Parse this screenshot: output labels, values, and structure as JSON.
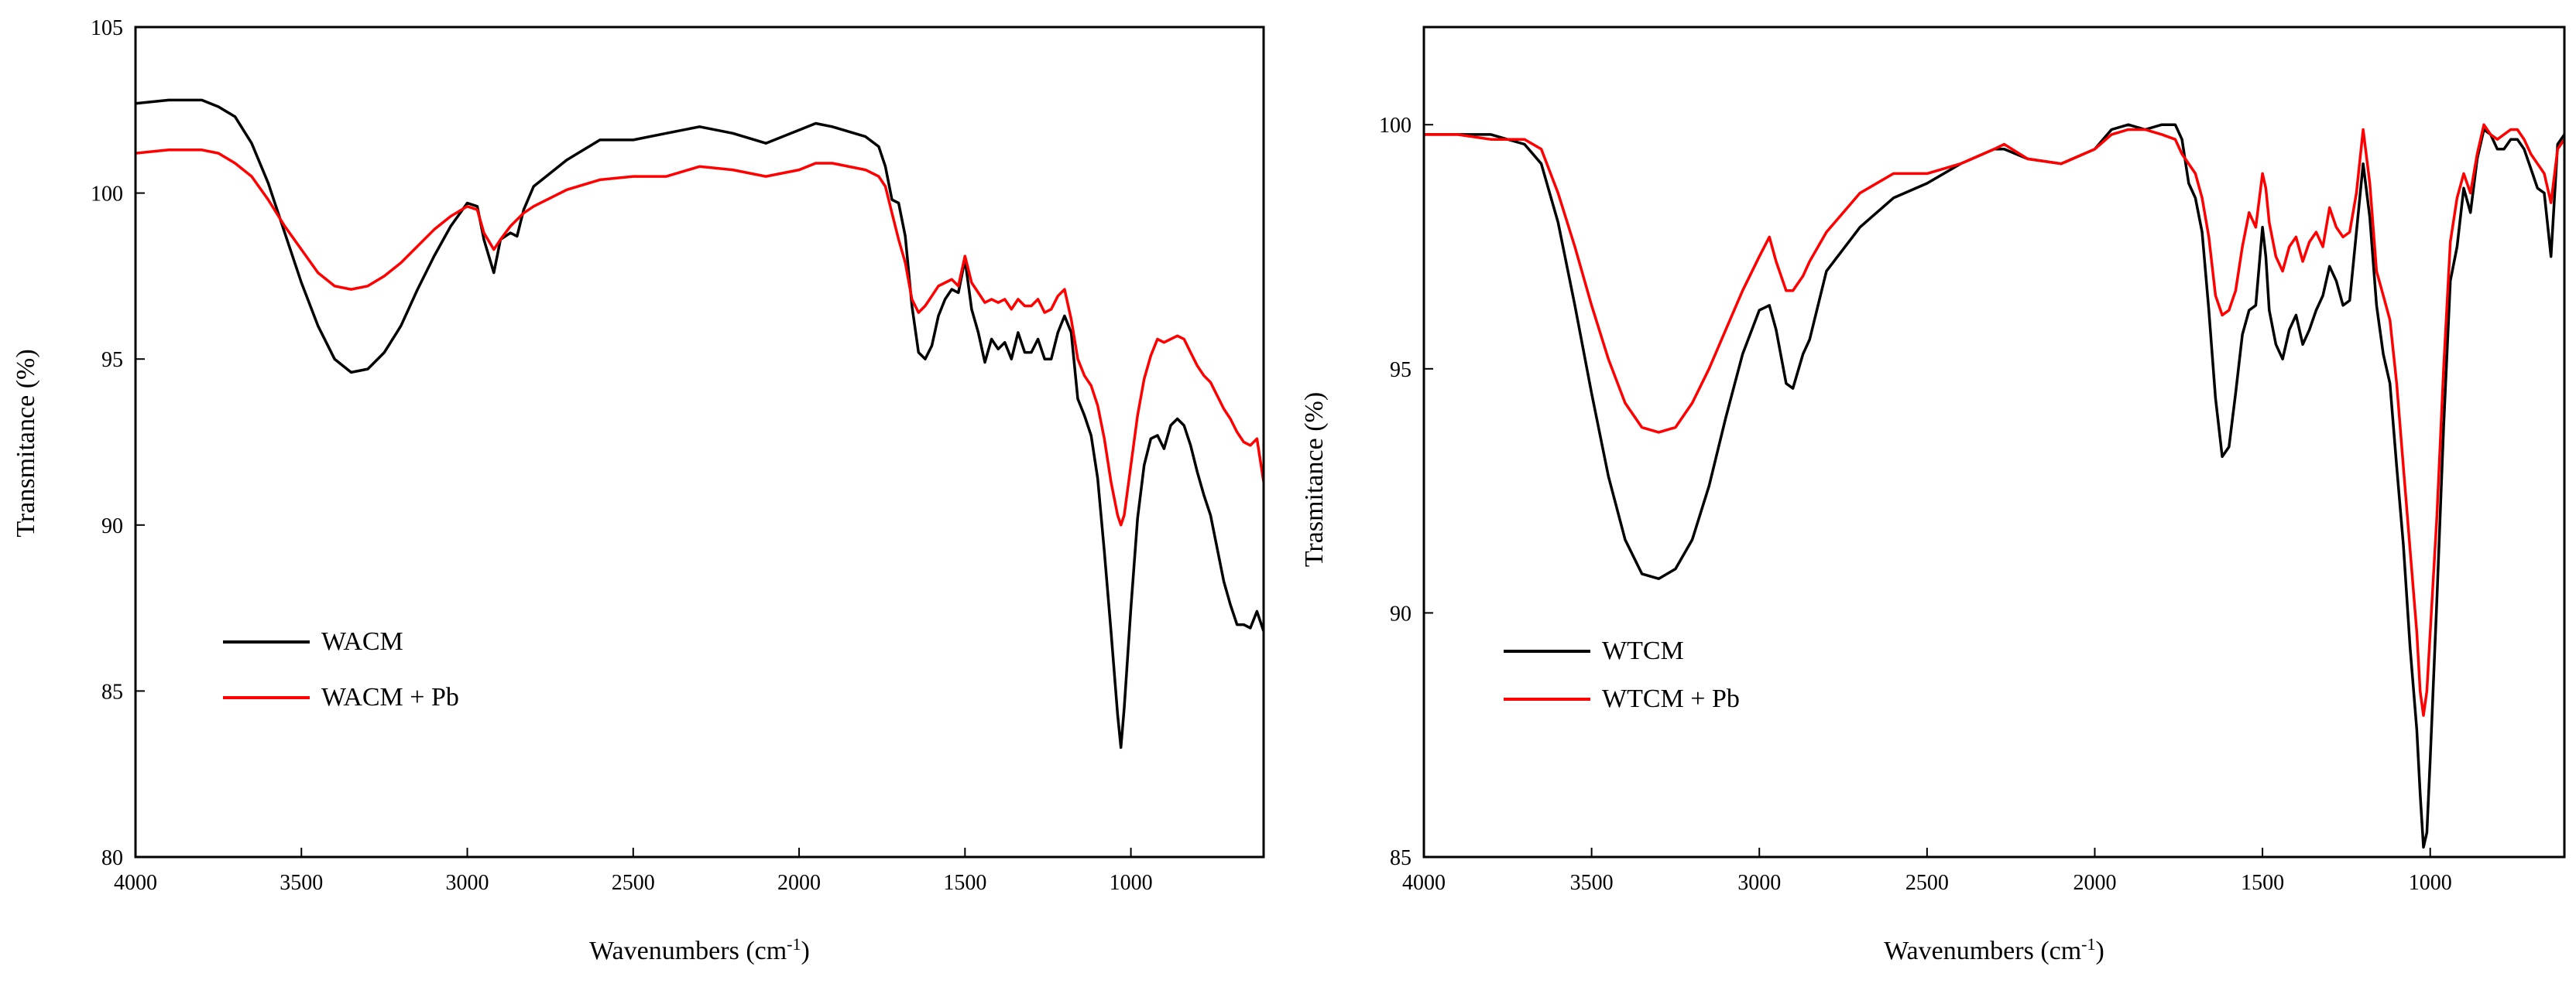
{
  "chart_data": [
    {
      "type": "line",
      "xlabel": "Wavenumbers (cm",
      "xlabel_sup": "-1",
      "xlabel_close": ")",
      "ylabel": "Transmitance (%)",
      "xlim": [
        4000,
        600
      ],
      "ylim": [
        80,
        105
      ],
      "xticks": [
        "4000",
        "3500",
        "3000",
        "2500",
        "2000",
        "1500",
        "1000"
      ],
      "xtick_values": [
        4000,
        3500,
        3000,
        2500,
        2000,
        1500,
        1000
      ],
      "yticks": [
        "80",
        "85",
        "90",
        "95",
        "100",
        "105"
      ],
      "ytick_values": [
        80,
        85,
        90,
        95,
        100,
        105
      ],
      "legend_position": "bottom-left",
      "series": [
        {
          "name": "WACM",
          "color": "#000000",
          "x": [
            4000,
            3900,
            3800,
            3750,
            3700,
            3650,
            3600,
            3550,
            3500,
            3450,
            3400,
            3350,
            3300,
            3250,
            3200,
            3150,
            3100,
            3050,
            3000,
            2970,
            2950,
            2920,
            2900,
            2870,
            2850,
            2830,
            2800,
            2700,
            2600,
            2500,
            2400,
            2300,
            2200,
            2100,
            2000,
            1950,
            1900,
            1800,
            1760,
            1740,
            1720,
            1700,
            1680,
            1660,
            1640,
            1620,
            1600,
            1580,
            1560,
            1540,
            1520,
            1500,
            1480,
            1460,
            1440,
            1420,
            1400,
            1380,
            1360,
            1340,
            1320,
            1300,
            1280,
            1260,
            1240,
            1220,
            1200,
            1180,
            1160,
            1140,
            1120,
            1100,
            1080,
            1060,
            1040,
            1030,
            1020,
            1000,
            980,
            960,
            940,
            920,
            900,
            880,
            860,
            840,
            820,
            800,
            780,
            760,
            740,
            720,
            700,
            680,
            660,
            640,
            620,
            600
          ],
          "values": [
            102.7,
            102.8,
            102.8,
            102.6,
            102.3,
            101.5,
            100.3,
            98.8,
            97.3,
            96.0,
            95.0,
            94.6,
            94.7,
            95.2,
            96.0,
            97.1,
            98.1,
            99.0,
            99.7,
            99.6,
            98.6,
            97.6,
            98.6,
            98.8,
            98.7,
            99.5,
            100.2,
            101.0,
            101.6,
            101.6,
            101.8,
            102.0,
            101.8,
            101.5,
            101.9,
            102.1,
            102.0,
            101.7,
            101.4,
            100.8,
            99.8,
            99.7,
            98.7,
            96.6,
            95.2,
            95.0,
            95.4,
            96.3,
            96.8,
            97.1,
            97.0,
            98.0,
            96.5,
            95.8,
            94.9,
            95.6,
            95.3,
            95.5,
            95.0,
            95.8,
            95.2,
            95.2,
            95.6,
            95.0,
            95.0,
            95.8,
            96.3,
            95.8,
            93.8,
            93.3,
            92.7,
            91.4,
            89.2,
            86.8,
            84.3,
            83.3,
            84.5,
            87.5,
            90.2,
            91.8,
            92.6,
            92.7,
            92.3,
            93.0,
            93.2,
            93.0,
            92.4,
            91.6,
            90.9,
            90.3,
            89.3,
            88.3,
            87.6,
            87.0,
            87.0,
            86.9,
            87.4,
            86.8
          ]
        },
        {
          "name": "WACM + Pb",
          "color": "#ff0000",
          "x": [
            4000,
            3900,
            3800,
            3750,
            3700,
            3650,
            3600,
            3550,
            3500,
            3450,
            3400,
            3350,
            3300,
            3250,
            3200,
            3150,
            3100,
            3050,
            3000,
            2970,
            2950,
            2920,
            2900,
            2870,
            2850,
            2830,
            2800,
            2700,
            2600,
            2500,
            2400,
            2300,
            2200,
            2100,
            2000,
            1950,
            1900,
            1800,
            1760,
            1740,
            1720,
            1700,
            1680,
            1660,
            1640,
            1620,
            1600,
            1580,
            1560,
            1540,
            1520,
            1500,
            1480,
            1460,
            1440,
            1420,
            1400,
            1380,
            1360,
            1340,
            1320,
            1300,
            1280,
            1260,
            1240,
            1220,
            1200,
            1180,
            1160,
            1140,
            1120,
            1100,
            1080,
            1060,
            1040,
            1030,
            1020,
            1000,
            980,
            960,
            940,
            920,
            900,
            880,
            860,
            840,
            820,
            800,
            780,
            760,
            740,
            720,
            700,
            680,
            660,
            640,
            620,
            600
          ],
          "values": [
            101.2,
            101.3,
            101.3,
            101.2,
            100.9,
            100.5,
            99.8,
            99.0,
            98.3,
            97.6,
            97.2,
            97.1,
            97.2,
            97.5,
            97.9,
            98.4,
            98.9,
            99.3,
            99.6,
            99.5,
            98.8,
            98.3,
            98.6,
            99.0,
            99.2,
            99.4,
            99.6,
            100.1,
            100.4,
            100.5,
            100.5,
            100.8,
            100.7,
            100.5,
            100.7,
            100.9,
            100.9,
            100.7,
            100.5,
            100.2,
            99.4,
            98.6,
            97.9,
            96.8,
            96.4,
            96.6,
            96.9,
            97.2,
            97.3,
            97.4,
            97.2,
            98.1,
            97.3,
            97.0,
            96.7,
            96.8,
            96.7,
            96.8,
            96.5,
            96.8,
            96.6,
            96.6,
            96.8,
            96.4,
            96.5,
            96.9,
            97.1,
            96.2,
            95.0,
            94.5,
            94.2,
            93.6,
            92.6,
            91.3,
            90.3,
            90.0,
            90.3,
            91.8,
            93.3,
            94.4,
            95.1,
            95.6,
            95.5,
            95.6,
            95.7,
            95.6,
            95.2,
            94.8,
            94.5,
            94.3,
            93.9,
            93.5,
            93.2,
            92.8,
            92.5,
            92.4,
            92.6,
            91.3
          ]
        }
      ]
    },
    {
      "type": "line",
      "xlabel": "Wavenumbers (cm",
      "xlabel_sup": "-1",
      "xlabel_close": ")",
      "ylabel": "Trasmitance (%)",
      "xlim": [
        4000,
        600
      ],
      "ylim": [
        85,
        102
      ],
      "xticks": [
        "4000",
        "3500",
        "3000",
        "2500",
        "2000",
        "1500",
        "1000"
      ],
      "xtick_values": [
        4000,
        3500,
        3000,
        2500,
        2000,
        1500,
        1000
      ],
      "yticks": [
        "85",
        "90",
        "95",
        "100"
      ],
      "ytick_values": [
        85,
        90,
        95,
        100
      ],
      "legend_position": "bottom-left",
      "series": [
        {
          "name": "WTCM",
          "color": "#000000",
          "x": [
            4000,
            3900,
            3800,
            3700,
            3650,
            3600,
            3550,
            3500,
            3450,
            3400,
            3350,
            3300,
            3250,
            3200,
            3150,
            3100,
            3050,
            3000,
            2970,
            2950,
            2920,
            2900,
            2870,
            2850,
            2800,
            2700,
            2600,
            2500,
            2400,
            2300,
            2270,
            2200,
            2100,
            2000,
            1950,
            1900,
            1850,
            1800,
            1760,
            1740,
            1720,
            1700,
            1680,
            1660,
            1640,
            1620,
            1600,
            1580,
            1560,
            1540,
            1520,
            1500,
            1490,
            1480,
            1460,
            1440,
            1420,
            1400,
            1380,
            1360,
            1340,
            1320,
            1300,
            1280,
            1260,
            1240,
            1220,
            1200,
            1180,
            1160,
            1140,
            1120,
            1100,
            1080,
            1060,
            1040,
            1030,
            1020,
            1010,
            1000,
            980,
            960,
            940,
            920,
            900,
            880,
            860,
            840,
            820,
            800,
            780,
            760,
            740,
            720,
            700,
            680,
            660,
            640,
            620,
            600
          ],
          "values": [
            99.8,
            99.8,
            99.8,
            99.6,
            99.2,
            98.0,
            96.3,
            94.5,
            92.8,
            91.5,
            90.8,
            90.7,
            90.9,
            91.5,
            92.6,
            94.0,
            95.3,
            96.2,
            96.3,
            95.8,
            94.7,
            94.6,
            95.3,
            95.6,
            97.0,
            97.9,
            98.5,
            98.8,
            99.2,
            99.5,
            99.5,
            99.3,
            99.2,
            99.5,
            99.9,
            100.0,
            99.9,
            100.0,
            100.0,
            99.7,
            98.8,
            98.5,
            97.8,
            96.2,
            94.4,
            93.2,
            93.4,
            94.5,
            95.7,
            96.2,
            96.3,
            97.9,
            97.3,
            96.2,
            95.5,
            95.2,
            95.8,
            96.1,
            95.5,
            95.8,
            96.2,
            96.5,
            97.1,
            96.8,
            96.3,
            96.4,
            97.8,
            99.2,
            98.1,
            96.3,
            95.3,
            94.7,
            93.0,
            91.4,
            89.3,
            87.6,
            86.3,
            85.2,
            85.5,
            87.0,
            90.3,
            93.8,
            96.8,
            97.5,
            98.7,
            98.2,
            99.3,
            99.9,
            99.8,
            99.5,
            99.5,
            99.7,
            99.7,
            99.5,
            99.1,
            98.7,
            98.6,
            97.3,
            99.6,
            99.8
          ]
        },
        {
          "name": "WTCM + Pb",
          "color": "#ff0000",
          "x": [
            4000,
            3900,
            3800,
            3700,
            3650,
            3600,
            3550,
            3500,
            3450,
            3400,
            3350,
            3300,
            3250,
            3200,
            3150,
            3100,
            3050,
            3000,
            2970,
            2950,
            2920,
            2900,
            2870,
            2850,
            2800,
            2700,
            2600,
            2500,
            2400,
            2300,
            2270,
            2200,
            2100,
            2000,
            1950,
            1900,
            1850,
            1800,
            1760,
            1740,
            1720,
            1700,
            1680,
            1660,
            1640,
            1620,
            1600,
            1580,
            1560,
            1540,
            1520,
            1500,
            1490,
            1480,
            1460,
            1440,
            1420,
            1400,
            1380,
            1360,
            1340,
            1320,
            1300,
            1280,
            1260,
            1240,
            1220,
            1200,
            1180,
            1160,
            1140,
            1120,
            1100,
            1080,
            1060,
            1040,
            1030,
            1020,
            1010,
            1000,
            980,
            960,
            940,
            920,
            900,
            880,
            860,
            840,
            820,
            800,
            780,
            760,
            740,
            720,
            700,
            680,
            660,
            640,
            620,
            600
          ],
          "values": [
            99.8,
            99.8,
            99.7,
            99.7,
            99.5,
            98.6,
            97.5,
            96.3,
            95.2,
            94.3,
            93.8,
            93.7,
            93.8,
            94.3,
            95.0,
            95.8,
            96.6,
            97.3,
            97.7,
            97.2,
            96.6,
            96.6,
            96.9,
            97.2,
            97.8,
            98.6,
            99.0,
            99.0,
            99.2,
            99.5,
            99.6,
            99.3,
            99.2,
            99.5,
            99.8,
            99.9,
            99.9,
            99.8,
            99.7,
            99.4,
            99.2,
            99.0,
            98.5,
            97.7,
            96.5,
            96.1,
            96.2,
            96.6,
            97.5,
            98.2,
            97.9,
            99.0,
            98.7,
            98.0,
            97.3,
            97.0,
            97.5,
            97.7,
            97.2,
            97.6,
            97.8,
            97.5,
            98.3,
            97.9,
            97.7,
            97.8,
            98.6,
            99.9,
            98.8,
            97.0,
            96.5,
            96.0,
            94.7,
            93.0,
            91.3,
            89.6,
            88.4,
            87.9,
            88.4,
            89.6,
            92.0,
            95.0,
            97.6,
            98.5,
            99.0,
            98.6,
            99.4,
            100.0,
            99.8,
            99.7,
            99.8,
            99.9,
            99.9,
            99.7,
            99.4,
            99.2,
            99.0,
            98.4,
            99.5,
            99.7
          ]
        }
      ]
    }
  ]
}
